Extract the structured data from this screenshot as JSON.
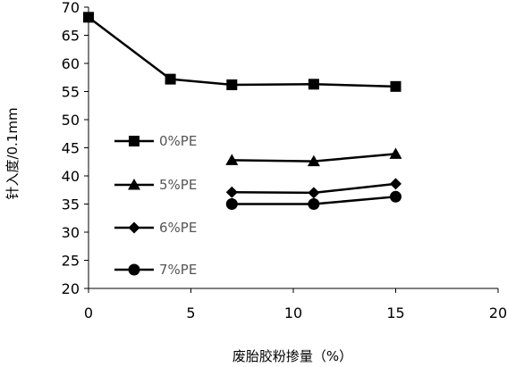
{
  "chart_data": {
    "type": "line",
    "xlabel": "废胎胶粉掺量（%）",
    "ylabel": "针入度/0.1mm",
    "xlim": [
      0,
      20
    ],
    "ylim": [
      20,
      70
    ],
    "xticks": [
      0,
      5,
      10,
      15,
      20
    ],
    "yticks": [
      20,
      25,
      30,
      35,
      40,
      45,
      50,
      55,
      60,
      65,
      70
    ],
    "grid": false,
    "legend_position": "left",
    "line_color": "#000000",
    "series": [
      {
        "name": "0%PE",
        "marker": "square",
        "x": [
          0,
          4,
          7,
          11,
          15
        ],
        "y": [
          68.2,
          57.2,
          56.2,
          56.3,
          55.9
        ]
      },
      {
        "name": "5%PE",
        "marker": "triangle",
        "x": [
          7,
          11,
          15
        ],
        "y": [
          42.8,
          42.6,
          43.9
        ]
      },
      {
        "name": "6%PE",
        "marker": "diamond",
        "x": [
          7,
          11,
          15
        ],
        "y": [
          37.1,
          37.0,
          38.6
        ]
      },
      {
        "name": "7%PE",
        "marker": "circle",
        "x": [
          7,
          11,
          15
        ],
        "y": [
          35.0,
          35.0,
          36.3
        ]
      }
    ]
  }
}
